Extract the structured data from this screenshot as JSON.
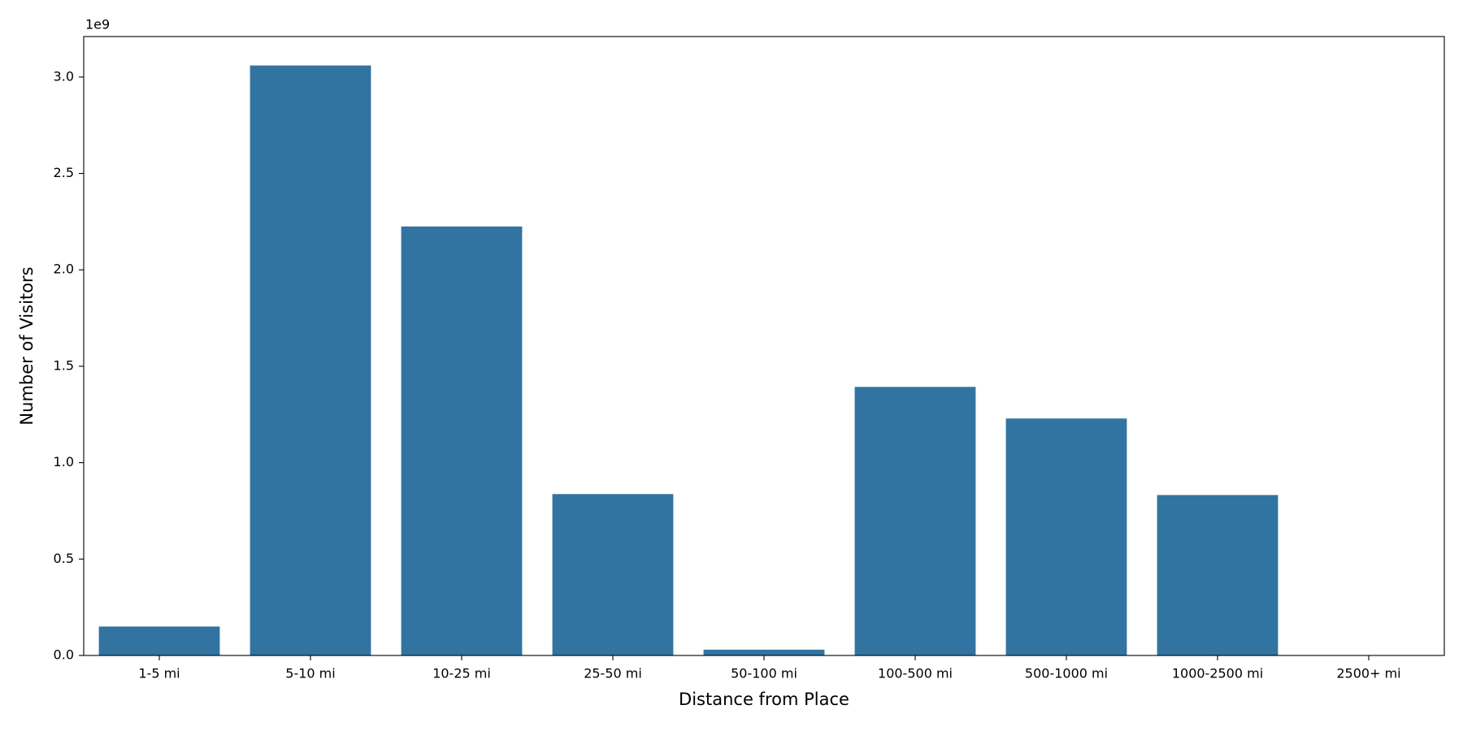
{
  "chart_data": {
    "type": "bar",
    "x_label": "Distance from Place",
    "y_label": "Number of Visitors",
    "offset_text": "1e9",
    "categories": [
      "1-5 mi",
      "5-10 mi",
      "10-25 mi",
      "25-50 mi",
      "50-100 mi",
      "100-500 mi",
      "500-1000 mi",
      "1000-2500 mi",
      "2500+ mi"
    ],
    "values": [
      0.15,
      3.06,
      2.225,
      0.837,
      0.03,
      1.393,
      1.229,
      0.832,
      0
    ],
    "color": "#3274a1",
    "ylim": [
      0,
      3.21
    ],
    "yticks": [
      {
        "value": 0,
        "label": "0.0"
      },
      0.5,
      {
        "value": 1,
        "label": "1.0"
      },
      1.5,
      {
        "value": 2,
        "label": "2.0"
      },
      2.5,
      {
        "value": 3,
        "label": "3.0"
      }
    ],
    "grid": false
  }
}
